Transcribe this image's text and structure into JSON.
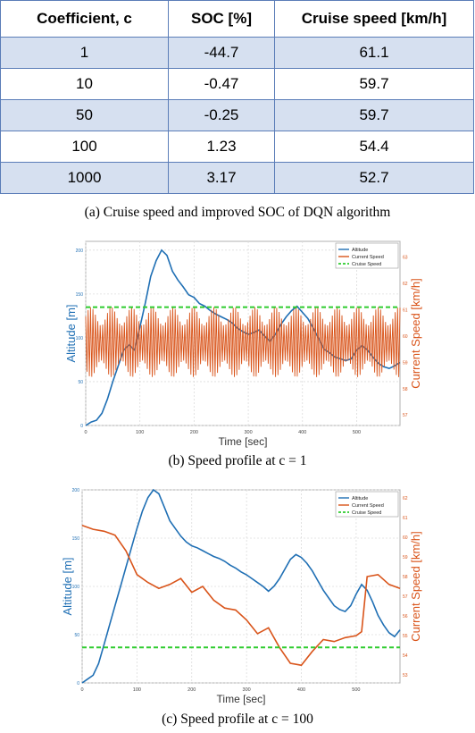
{
  "table": {
    "headers": [
      "Coefficient, c",
      "SOC [%]",
      "Cruise speed [km/h]"
    ],
    "rows": [
      [
        "1",
        "-44.7",
        "61.1"
      ],
      [
        "10",
        "-0.47",
        "59.7"
      ],
      [
        "50",
        "-0.25",
        "59.7"
      ],
      [
        "100",
        "1.23",
        "54.4"
      ],
      [
        "1000",
        "3.17",
        "52.7"
      ]
    ]
  },
  "captions": {
    "a": "(a) Cruise speed and improved SOC of DQN algorithm",
    "b": "(b) Speed profile at c = 1",
    "c": "(c) Speed profile at c = 100"
  },
  "colors": {
    "altitude": "#1f6fb4",
    "current_speed": "#d9541a",
    "cruise_speed": "#2ecc2e",
    "table_border": "#5b7db8",
    "table_shade": "#d6e0f0"
  },
  "chart_data": [
    {
      "type": "line",
      "xlabel": "Time [sec]",
      "ylabel_left": "Altitude [m]",
      "ylabel_right": "Current Speed [km/h]",
      "xlim": [
        0,
        580
      ],
      "xticks": [
        0,
        100,
        200,
        300,
        400,
        500
      ],
      "grid": true,
      "legend_position": "top-right",
      "series": [
        {
          "name": "Altitude",
          "axis": "left",
          "x": [
            0,
            10,
            20,
            30,
            40,
            50,
            60,
            70,
            80,
            90,
            100,
            110,
            120,
            130,
            140,
            150,
            160,
            170,
            180,
            190,
            200,
            210,
            220,
            230,
            240,
            250,
            260,
            270,
            280,
            290,
            300,
            310,
            320,
            330,
            340,
            350,
            360,
            370,
            380,
            390,
            400,
            410,
            420,
            430,
            440,
            450,
            460,
            470,
            480,
            490,
            500,
            510,
            520,
            530,
            540,
            550,
            560,
            570,
            580
          ],
          "y": [
            0,
            4,
            6,
            14,
            30,
            50,
            68,
            86,
            92,
            86,
            112,
            140,
            170,
            188,
            200,
            194,
            176,
            166,
            158,
            149,
            146,
            139,
            136,
            131,
            127,
            124,
            121,
            117,
            111,
            107,
            104,
            106,
            109,
            102,
            96,
            104,
            115,
            124,
            131,
            136,
            129,
            122,
            111,
            99,
            87,
            83,
            78,
            76,
            74,
            76,
            86,
            91,
            86,
            78,
            71,
            67,
            65,
            68,
            72
          ]
        },
        {
          "name": "Current Speed",
          "axis": "right",
          "oscillating": true,
          "center": 59.7,
          "amplitude": 1.4,
          "x": [
            0,
            580
          ],
          "y": [
            59.7,
            59.7
          ]
        },
        {
          "name": "Cruise Speed",
          "axis": "right",
          "x": [
            0,
            580
          ],
          "y": [
            61.1,
            61.1
          ]
        }
      ]
    },
    {
      "type": "line",
      "xlabel": "Time [sec]",
      "ylabel_left": "Altitude [m]",
      "ylabel_right": "Current Speed [km/h]",
      "xlim": [
        0,
        580
      ],
      "xticks": [
        0,
        100,
        200,
        300,
        400,
        500
      ],
      "grid": true,
      "legend_position": "top-right",
      "series": [
        {
          "name": "Altitude",
          "axis": "left",
          "x": [
            0,
            10,
            20,
            30,
            40,
            50,
            60,
            70,
            80,
            90,
            100,
            110,
            120,
            130,
            140,
            150,
            160,
            170,
            180,
            190,
            200,
            210,
            220,
            230,
            240,
            250,
            260,
            270,
            280,
            290,
            300,
            310,
            320,
            330,
            340,
            350,
            360,
            370,
            380,
            390,
            400,
            410,
            420,
            430,
            440,
            450,
            460,
            470,
            480,
            490,
            500,
            510,
            520,
            530,
            540,
            550,
            560,
            570,
            580
          ],
          "y": [
            0,
            4,
            8,
            20,
            40,
            60,
            80,
            100,
            120,
            140,
            160,
            178,
            192,
            200,
            196,
            182,
            168,
            160,
            152,
            146,
            142,
            140,
            137,
            134,
            131,
            129,
            126,
            122,
            119,
            115,
            112,
            108,
            104,
            100,
            95,
            100,
            108,
            118,
            128,
            133,
            130,
            124,
            116,
            106,
            96,
            88,
            80,
            76,
            74,
            80,
            92,
            102,
            96,
            84,
            70,
            60,
            52,
            48,
            55
          ]
        },
        {
          "name": "Current Speed",
          "axis": "right",
          "x": [
            0,
            20,
            40,
            60,
            80,
            100,
            120,
            140,
            160,
            180,
            200,
            220,
            240,
            260,
            280,
            300,
            320,
            340,
            360,
            380,
            400,
            420,
            440,
            460,
            480,
            500,
            510,
            520,
            540,
            560,
            580
          ],
          "y": [
            60.6,
            60.4,
            60.3,
            60.1,
            59.3,
            58.1,
            57.7,
            57.4,
            57.6,
            57.9,
            57.2,
            57.5,
            56.8,
            56.4,
            56.3,
            55.8,
            55.1,
            55.4,
            54.4,
            53.6,
            53.5,
            54.2,
            54.8,
            54.7,
            54.9,
            55.0,
            55.2,
            58.0,
            58.1,
            57.6,
            57.4
          ]
        },
        {
          "name": "Cruise Speed",
          "axis": "right",
          "x": [
            0,
            580
          ],
          "y": [
            54.4,
            54.4
          ]
        }
      ]
    }
  ]
}
